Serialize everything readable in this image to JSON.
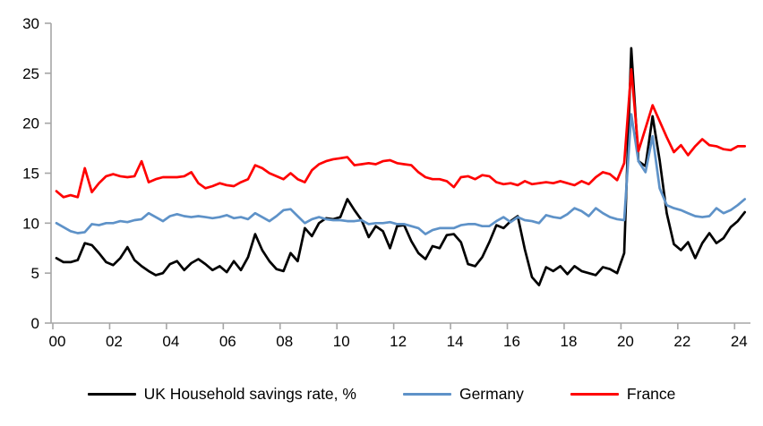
{
  "chart_data": {
    "type": "line",
    "title": "",
    "xlabel": "",
    "ylabel": "",
    "x_unit": "quarterly",
    "x_start": "2000Q1",
    "x_end": "2024Q2",
    "ylim": [
      0,
      30
    ],
    "grid": false,
    "legend_position": "bottom",
    "x_tick_labels": [
      "00",
      "02",
      "04",
      "06",
      "08",
      "10",
      "12",
      "14",
      "16",
      "18",
      "20",
      "22",
      "24"
    ],
    "y_tick_labels": [
      "0",
      "5",
      "10",
      "15",
      "20",
      "25",
      "30"
    ],
    "y_ticks": [
      0,
      5,
      10,
      15,
      20,
      25,
      30
    ],
    "axis_color": "#A6A6A6",
    "series": [
      {
        "name": "UK Household savings rate, %",
        "color": "#000000",
        "values": [
          6.5,
          6.1,
          6.1,
          6.3,
          8.0,
          7.8,
          7.0,
          6.1,
          5.8,
          6.5,
          7.6,
          6.3,
          5.7,
          5.2,
          4.8,
          5.0,
          5.9,
          6.2,
          5.3,
          6.0,
          6.4,
          5.9,
          5.3,
          5.7,
          5.1,
          6.2,
          5.3,
          6.6,
          8.9,
          7.3,
          6.2,
          5.4,
          5.2,
          7.0,
          6.2,
          9.5,
          8.7,
          10.0,
          10.5,
          10.4,
          10.6,
          12.4,
          11.3,
          10.3,
          8.6,
          9.7,
          9.2,
          7.5,
          9.7,
          9.8,
          8.2,
          7.0,
          6.4,
          7.7,
          7.5,
          8.8,
          8.9,
          8.1,
          5.9,
          5.7,
          6.6,
          8.1,
          9.8,
          9.5,
          10.2,
          10.7,
          7.4,
          4.6,
          3.8,
          5.6,
          5.2,
          5.7,
          4.9,
          5.7,
          5.2,
          5.0,
          4.8,
          5.6,
          5.4,
          5.0,
          7.0,
          27.5,
          16.2,
          15.7,
          20.7,
          16.3,
          11.0,
          7.9,
          7.3,
          8.1,
          6.5,
          8.0,
          9.0,
          8.0,
          8.5,
          9.6,
          10.2,
          11.1
        ]
      },
      {
        "name": "Germany",
        "color": "#5E92C8",
        "values": [
          10.0,
          9.6,
          9.2,
          9.0,
          9.1,
          9.9,
          9.8,
          10.0,
          10.0,
          10.2,
          10.1,
          10.3,
          10.4,
          11.0,
          10.6,
          10.2,
          10.7,
          10.9,
          10.7,
          10.6,
          10.7,
          10.6,
          10.5,
          10.6,
          10.8,
          10.5,
          10.6,
          10.4,
          11.0,
          10.6,
          10.2,
          10.7,
          11.3,
          11.4,
          10.7,
          10.0,
          10.4,
          10.6,
          10.4,
          10.3,
          10.3,
          10.2,
          10.2,
          10.3,
          9.9,
          10.0,
          10.0,
          10.1,
          9.9,
          9.9,
          9.7,
          9.5,
          8.9,
          9.3,
          9.5,
          9.5,
          9.5,
          9.8,
          9.9,
          9.9,
          9.7,
          9.7,
          10.2,
          10.6,
          10.1,
          10.6,
          10.3,
          10.2,
          10.0,
          10.8,
          10.6,
          10.5,
          10.9,
          11.5,
          11.2,
          10.7,
          11.5,
          11.0,
          10.6,
          10.4,
          10.3,
          20.9,
          16.2,
          15.1,
          18.7,
          13.5,
          11.8,
          11.5,
          11.3,
          11.0,
          10.7,
          10.6,
          10.7,
          11.5,
          11.0,
          11.3,
          11.8,
          12.4
        ]
      },
      {
        "name": "France",
        "color": "#FF0000",
        "values": [
          13.2,
          12.6,
          12.8,
          12.6,
          15.5,
          13.1,
          14.0,
          14.7,
          14.9,
          14.7,
          14.6,
          14.7,
          16.2,
          14.1,
          14.4,
          14.6,
          14.6,
          14.6,
          14.7,
          15.1,
          14.0,
          13.5,
          13.7,
          14.0,
          13.8,
          13.7,
          14.1,
          14.4,
          15.8,
          15.5,
          15.0,
          14.7,
          14.4,
          15.0,
          14.4,
          14.1,
          15.3,
          15.9,
          16.2,
          16.4,
          16.5,
          16.6,
          15.8,
          15.9,
          16.0,
          15.9,
          16.2,
          16.3,
          16.0,
          15.9,
          15.8,
          15.1,
          14.6,
          14.4,
          14.4,
          14.2,
          13.6,
          14.6,
          14.7,
          14.4,
          14.8,
          14.7,
          14.1,
          13.9,
          14.0,
          13.8,
          14.2,
          13.9,
          14.0,
          14.1,
          14.0,
          14.2,
          14.0,
          13.8,
          14.2,
          13.9,
          14.6,
          15.1,
          14.9,
          14.3,
          16.0,
          25.4,
          17.2,
          19.5,
          21.8,
          20.2,
          18.6,
          17.1,
          17.8,
          16.8,
          17.7,
          18.4,
          17.8,
          17.7,
          17.4,
          17.3,
          17.7,
          17.7
        ]
      }
    ]
  },
  "colors": {
    "background": "#FFFFFF",
    "axis": "#A6A6A6",
    "text": "#000000",
    "uk_line": "#000000",
    "germany_line": "#5E92C8",
    "france_line": "#FF0000"
  }
}
